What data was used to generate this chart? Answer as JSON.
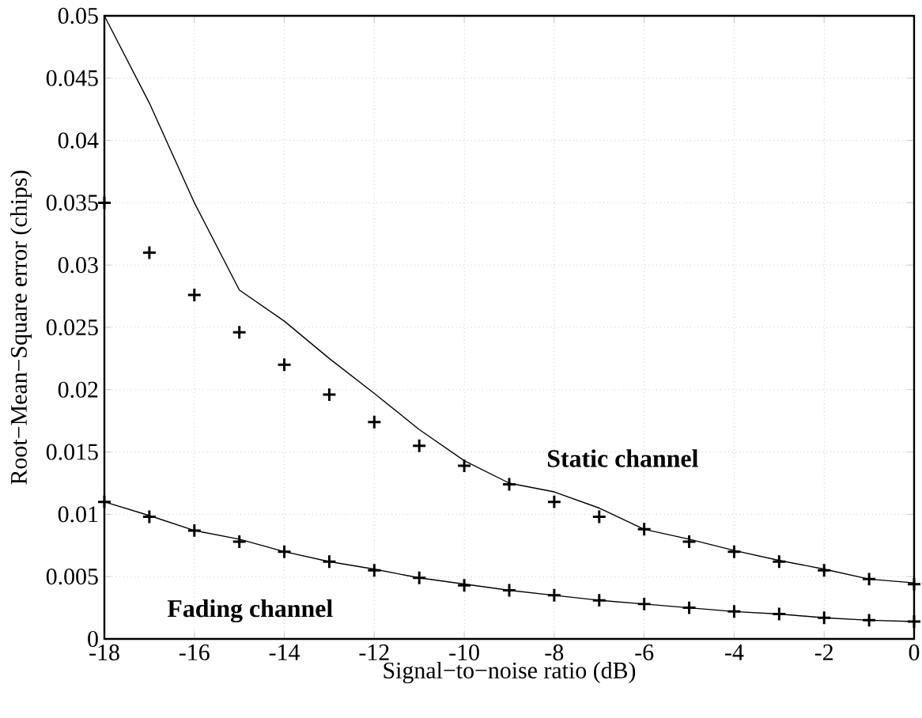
{
  "chart_data": {
    "type": "line",
    "xlabel": "Signal−to−noise ratio (dB)",
    "ylabel": "Root−Mean−Square error (chips)",
    "x": [
      -18,
      -17,
      -16,
      -15,
      -14,
      -13,
      -12,
      -11,
      -10,
      -9,
      -8,
      -7,
      -6,
      -5,
      -4,
      -3,
      -2,
      -1,
      0
    ],
    "series": [
      {
        "type": "line",
        "color": "#000000",
        "marker": "none",
        "line_style": "solid",
        "values": [
          0.05,
          0.043,
          0.035,
          0.028,
          0.0255,
          0.0225,
          0.0197,
          0.0168,
          0.0143,
          0.0125,
          0.0118,
          0.0105,
          0.0088,
          0.008,
          0.0071,
          0.0063,
          0.0056,
          0.0048,
          0.0045
        ]
      },
      {
        "type": "scatter",
        "color": "#000000",
        "marker": "cross",
        "values": [
          0.035,
          0.031,
          0.0276,
          0.0246,
          0.022,
          0.0196,
          0.0174,
          0.0155,
          0.0139,
          0.0124,
          0.011,
          0.0098,
          0.0088,
          0.0078,
          0.007,
          0.0062,
          0.0055,
          0.0048,
          0.0044
        ]
      },
      {
        "type": "line",
        "color": "#000000",
        "marker": "none",
        "line_style": "solid",
        "values": [
          0.011,
          0.0099,
          0.0087,
          0.008,
          0.007,
          0.0062,
          0.0056,
          0.0049,
          0.0044,
          0.0039,
          0.0035,
          0.0031,
          0.0028,
          0.0025,
          0.0022,
          0.002,
          0.0017,
          0.0015,
          0.0014
        ]
      },
      {
        "type": "scatter",
        "color": "#000000",
        "marker": "cross",
        "values": [
          0.011,
          0.0098,
          0.0087,
          0.0078,
          0.007,
          0.0062,
          0.0055,
          0.0049,
          0.0043,
          0.0039,
          0.0035,
          0.0031,
          0.0028,
          0.0025,
          0.0022,
          0.002,
          0.0017,
          0.0015,
          0.0014
        ]
      }
    ],
    "annotations": [
      "Static channel",
      "Fading channel"
    ],
    "xlim": [
      -18,
      0
    ],
    "ylim": [
      0,
      0.05
    ],
    "xticks": [
      -18,
      -16,
      -14,
      -12,
      -10,
      -8,
      -6,
      -4,
      -2,
      0
    ],
    "yticks": [
      0,
      0.005,
      0.01,
      0.015,
      0.02,
      0.025,
      0.03,
      0.035,
      0.04,
      0.045,
      0.05
    ],
    "grid": true
  }
}
